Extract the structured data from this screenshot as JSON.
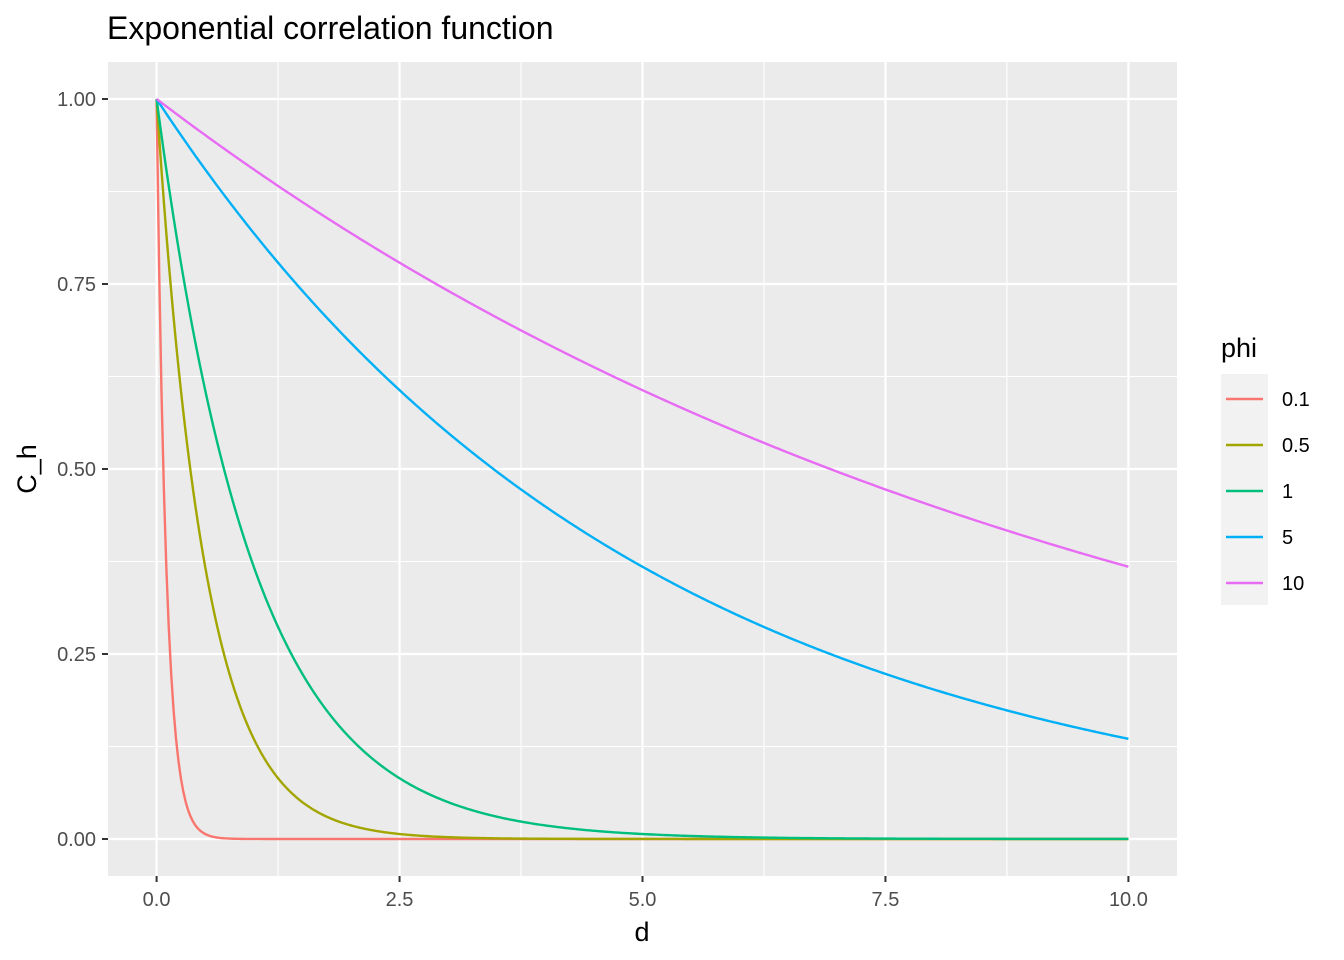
{
  "chart_data": {
    "type": "line",
    "title": "Exponential correlation function",
    "xlabel": "d",
    "ylabel": "C_h",
    "xlim": [
      -0.5,
      10.5
    ],
    "ylim": [
      -0.05,
      1.05
    ],
    "x_ticks": [
      0.0,
      2.5,
      5.0,
      7.5,
      10.0
    ],
    "x_tick_labels": [
      "0.0",
      "2.5",
      "5.0",
      "7.5",
      "10.0"
    ],
    "y_ticks": [
      0.0,
      0.25,
      0.5,
      0.75,
      1.0
    ],
    "y_tick_labels": [
      "0.00",
      "0.25",
      "0.50",
      "0.75",
      "1.00"
    ],
    "grid": true,
    "legend": {
      "title": "phi",
      "position": "right"
    },
    "function": "exp(-d/phi)",
    "x_range": [
      0,
      10
    ],
    "series": [
      {
        "name": "0.1",
        "phi": 0.1,
        "color": "#F8766D"
      },
      {
        "name": "0.5",
        "phi": 0.5,
        "color": "#A3A500"
      },
      {
        "name": "1",
        "phi": 1,
        "color": "#00BF7D"
      },
      {
        "name": "5",
        "phi": 5,
        "color": "#00B0F6"
      },
      {
        "name": "10",
        "phi": 10,
        "color": "#E76BF3"
      }
    ]
  }
}
